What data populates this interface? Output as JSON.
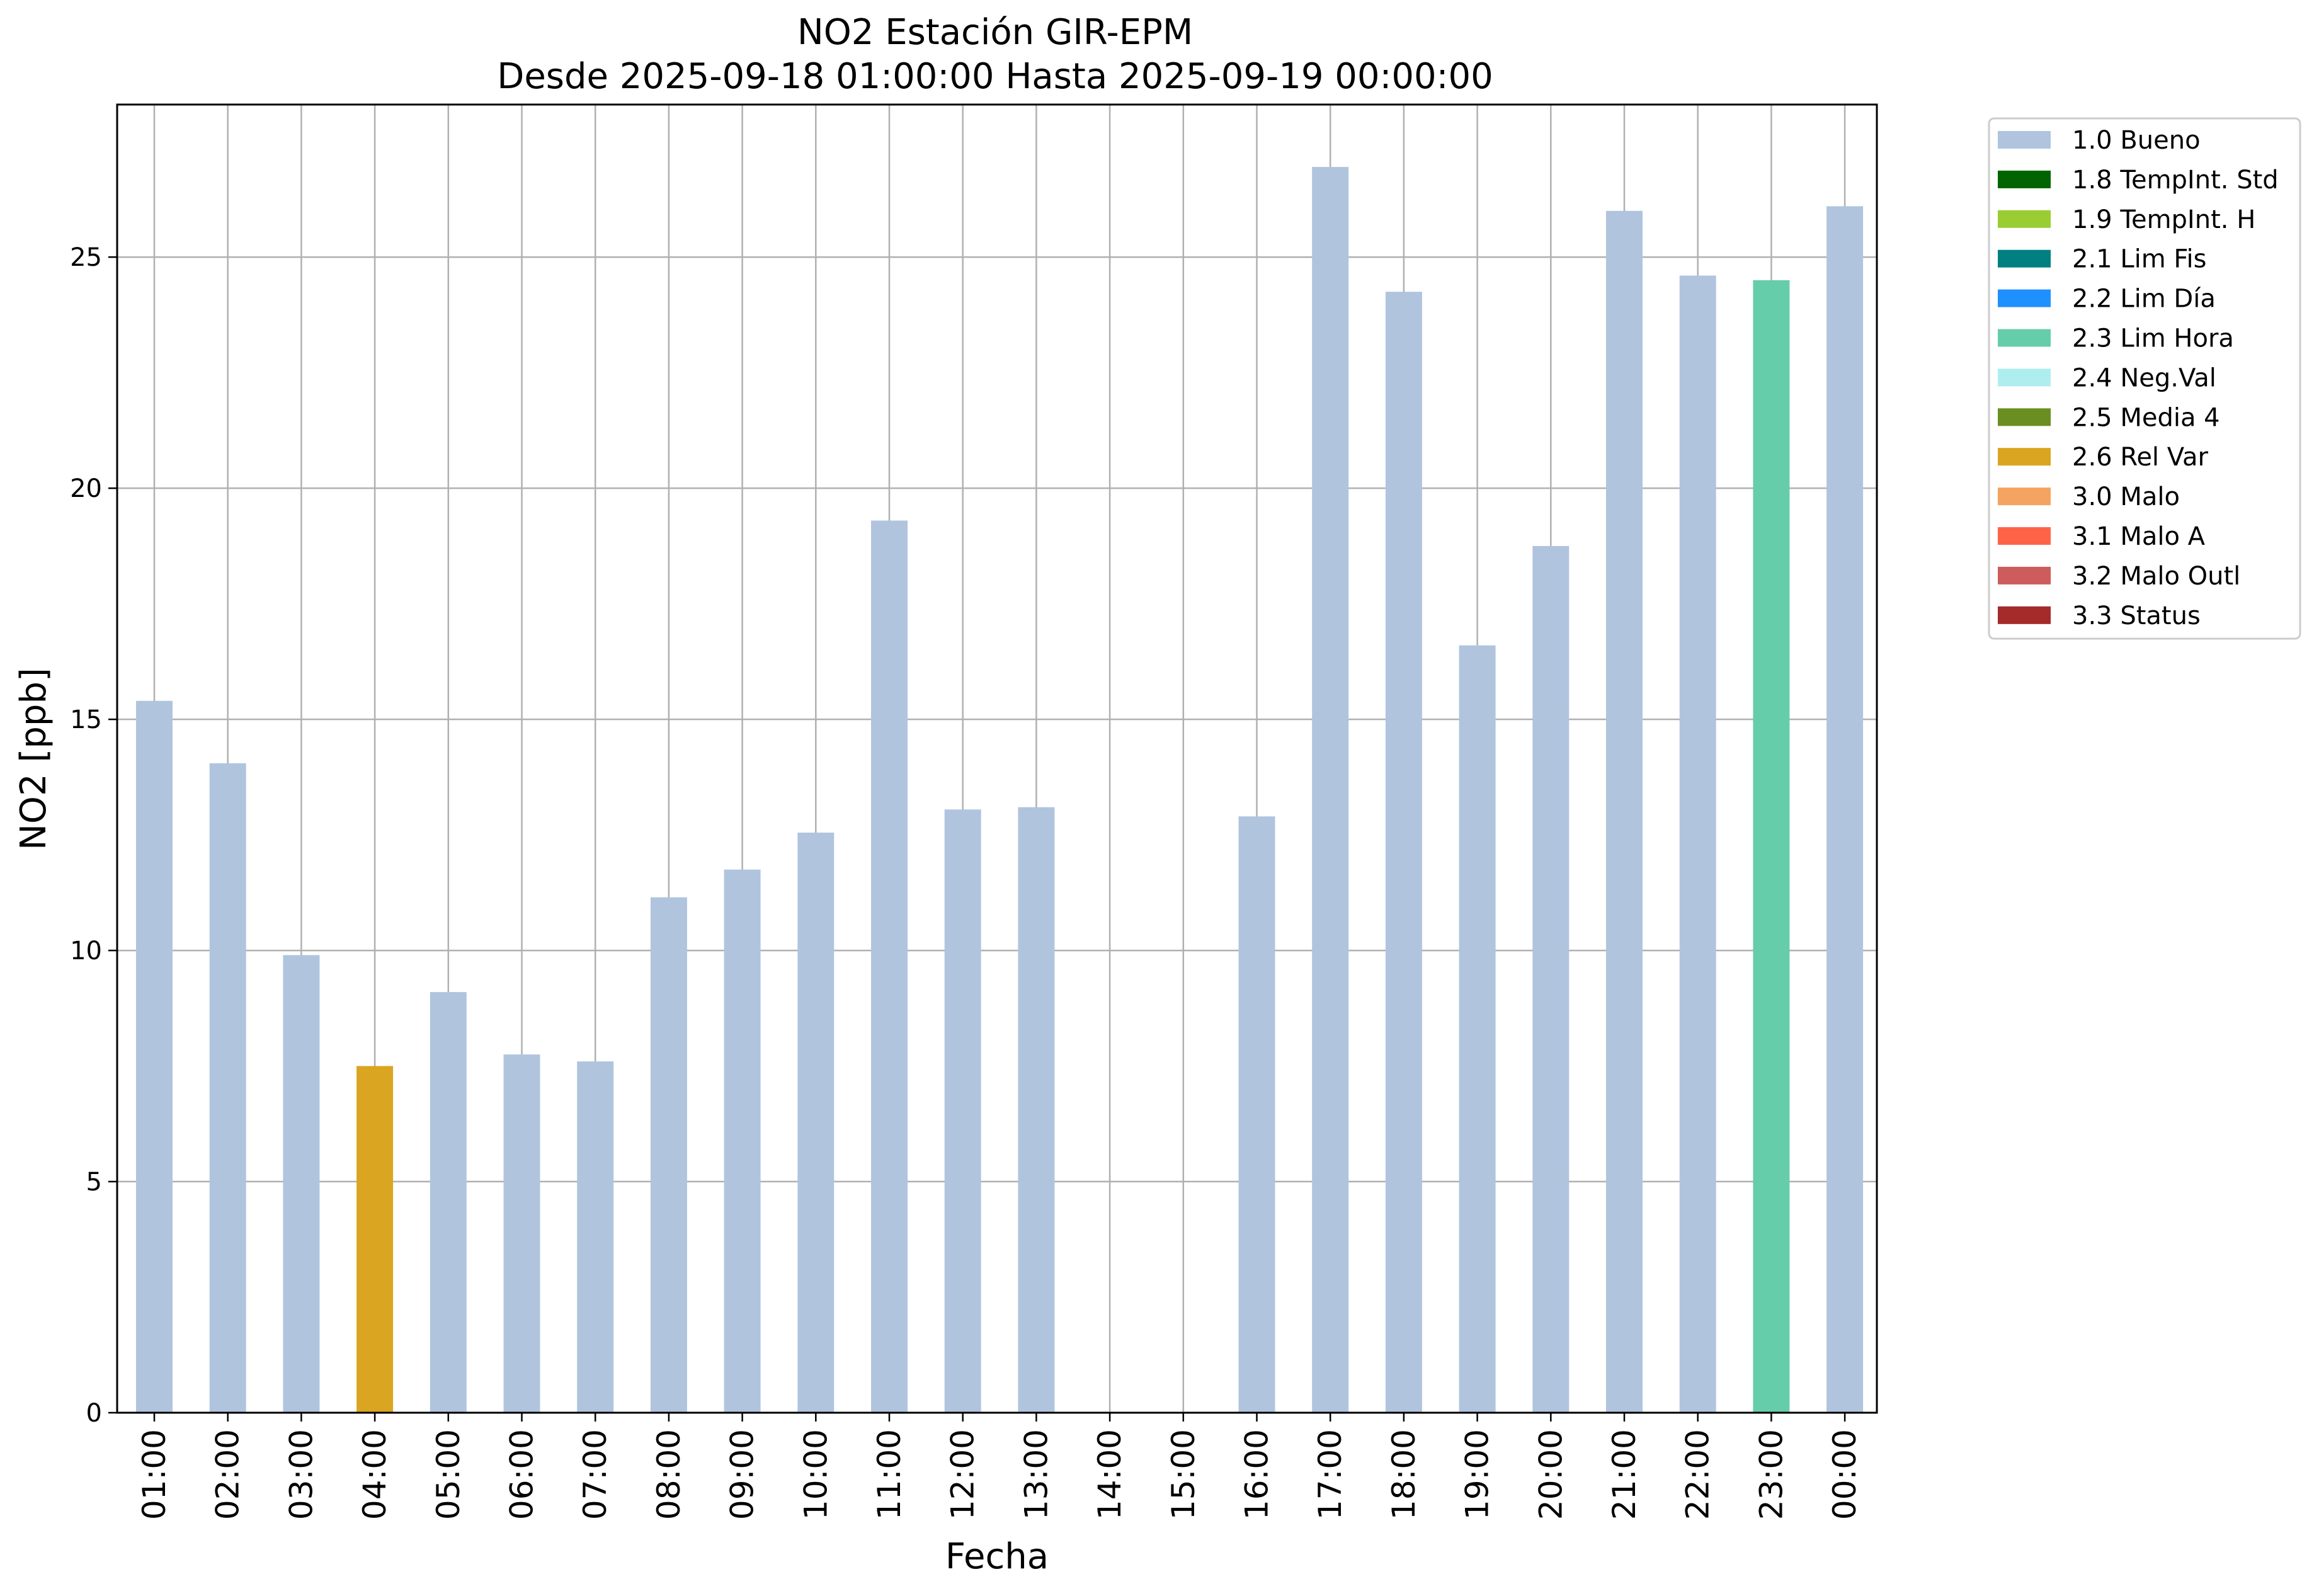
{
  "chart_data": {
    "type": "bar",
    "title_line1": "NO2 Estación GIR-EPM",
    "title_line2": "Desde 2025-09-18 01:00:00 Hasta 2025-09-19 00:00:00",
    "xlabel": "Fecha",
    "ylabel": "NO2 [ppb]",
    "ylim": [
      0,
      28.3
    ],
    "yticks": [
      0,
      5,
      10,
      15,
      20,
      25
    ],
    "grid": true,
    "legend_placement": "outside-top-right",
    "categories": [
      "01:00",
      "02:00",
      "03:00",
      "04:00",
      "05:00",
      "06:00",
      "07:00",
      "08:00",
      "09:00",
      "10:00",
      "11:00",
      "12:00",
      "13:00",
      "14:00",
      "15:00",
      "16:00",
      "17:00",
      "18:00",
      "19:00",
      "20:00",
      "21:00",
      "22:00",
      "23:00",
      "00:00"
    ],
    "values": [
      15.4,
      14.05,
      9.9,
      7.5,
      9.1,
      7.75,
      7.6,
      11.15,
      11.75,
      12.55,
      19.3,
      13.05,
      13.1,
      null,
      null,
      12.9,
      26.95,
      24.25,
      16.6,
      18.75,
      26.0,
      24.6,
      24.5,
      26.1
    ],
    "flags": [
      "1.0 Bueno",
      "1.0 Bueno",
      "1.0 Bueno",
      "2.6 Rel Var",
      "1.0 Bueno",
      "1.0 Bueno",
      "1.0 Bueno",
      "1.0 Bueno",
      "1.0 Bueno",
      "1.0 Bueno",
      "1.0 Bueno",
      "1.0 Bueno",
      "1.0 Bueno",
      null,
      null,
      "1.0 Bueno",
      "1.0 Bueno",
      "1.0 Bueno",
      "1.0 Bueno",
      "1.0 Bueno",
      "1.0 Bueno",
      "1.0 Bueno",
      "2.3 Lim Hora",
      "1.0 Bueno"
    ],
    "legend": [
      {
        "label": "1.0 Bueno",
        "color": "#b0c4de"
      },
      {
        "label": "1.8 TempInt. Std",
        "color": "#006400"
      },
      {
        "label": "1.9 TempInt. H",
        "color": "#9acd32"
      },
      {
        "label": "2.1 Lim Fis",
        "color": "#008080"
      },
      {
        "label": "2.2 Lim Día",
        "color": "#1e90ff"
      },
      {
        "label": "2.3 Lim Hora",
        "color": "#66cdaa"
      },
      {
        "label": "2.4 Neg.Val",
        "color": "#afeeee"
      },
      {
        "label": "2.5 Media 4",
        "color": "#6b8e23"
      },
      {
        "label": "2.6 Rel Var",
        "color": "#daa520"
      },
      {
        "label": "3.0 Malo",
        "color": "#f4a460"
      },
      {
        "label": "3.1 Malo A",
        "color": "#ff6347"
      },
      {
        "label": "3.2 Malo Outl",
        "color": "#cd5c5c"
      },
      {
        "label": "3.3 Status",
        "color": "#a52a2a"
      }
    ],
    "colors": {
      "grid": "#b0b0b0",
      "axis": "#000000"
    }
  }
}
